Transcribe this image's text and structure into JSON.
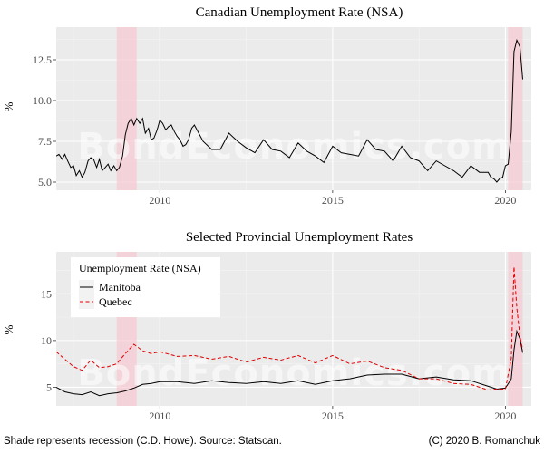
{
  "chart_data": [
    {
      "type": "line",
      "title": "Canadian Unemployment Rate (NSA)",
      "xlabel": "",
      "ylabel": "%",
      "xlim": [
        2007.0,
        2020.75
      ],
      "ylim": [
        4.5,
        14.5
      ],
      "x_ticks": [
        2010,
        2015,
        2020
      ],
      "x_tick_labels": [
        "2010",
        "2015",
        "2020"
      ],
      "y_ticks": [
        5.0,
        7.5,
        10.0,
        12.5
      ],
      "y_tick_labels": [
        "5.0",
        "7.5",
        "10.0",
        "12.5"
      ],
      "recessions": [
        [
          2008.75,
          2009.33
        ],
        [
          2020.08,
          2020.5
        ]
      ],
      "grid": true,
      "series": [
        {
          "color": "#000000",
          "x": [
            2007.0,
            2007.08,
            2007.17,
            2007.25,
            2007.33,
            2007.42,
            2007.5,
            2007.58,
            2007.67,
            2007.75,
            2007.83,
            2007.92,
            2008.0,
            2008.08,
            2008.17,
            2008.25,
            2008.33,
            2008.42,
            2008.5,
            2008.58,
            2008.67,
            2008.75,
            2008.83,
            2008.92,
            2009.0,
            2009.08,
            2009.17,
            2009.25,
            2009.33,
            2009.42,
            2009.5,
            2009.58,
            2009.67,
            2009.75,
            2009.83,
            2009.92,
            2010.0,
            2010.08,
            2010.17,
            2010.25,
            2010.33,
            2010.42,
            2010.5,
            2010.58,
            2010.67,
            2010.75,
            2010.83,
            2010.92,
            2011.0,
            2011.25,
            2011.5,
            2011.75,
            2012.0,
            2012.25,
            2012.5,
            2012.75,
            2013.0,
            2013.25,
            2013.5,
            2013.75,
            2014.0,
            2014.25,
            2014.5,
            2014.75,
            2015.0,
            2015.25,
            2015.5,
            2015.75,
            2016.0,
            2016.25,
            2016.5,
            2016.75,
            2017.0,
            2017.25,
            2017.5,
            2017.75,
            2018.0,
            2018.25,
            2018.5,
            2018.75,
            2019.0,
            2019.25,
            2019.5,
            2019.58,
            2019.67,
            2019.75,
            2019.83,
            2019.92,
            2020.0,
            2020.08,
            2020.17,
            2020.25,
            2020.33,
            2020.42,
            2020.5
          ],
          "values": [
            6.6,
            6.7,
            6.4,
            6.7,
            6.3,
            5.9,
            6.0,
            5.4,
            5.7,
            5.3,
            5.6,
            6.3,
            6.5,
            6.4,
            5.9,
            6.4,
            5.7,
            5.9,
            6.1,
            5.7,
            6.0,
            5.7,
            5.9,
            6.6,
            7.9,
            8.6,
            8.9,
            8.5,
            8.9,
            8.6,
            8.9,
            8.0,
            8.3,
            7.6,
            7.7,
            8.2,
            8.8,
            8.6,
            8.2,
            8.4,
            8.5,
            8.1,
            7.8,
            7.6,
            7.2,
            7.3,
            7.6,
            8.3,
            8.5,
            7.5,
            7.0,
            7.0,
            8.0,
            7.5,
            7.1,
            6.8,
            7.6,
            7.0,
            6.9,
            6.5,
            7.4,
            6.9,
            6.6,
            6.2,
            7.2,
            6.8,
            6.7,
            6.6,
            7.6,
            7.0,
            6.9,
            6.3,
            7.2,
            6.5,
            6.3,
            5.7,
            6.3,
            6.0,
            5.7,
            5.3,
            6.0,
            5.6,
            5.6,
            5.3,
            5.2,
            5.0,
            5.2,
            5.3,
            6.0,
            6.1,
            8.1,
            13.0,
            13.7,
            13.3,
            11.3
          ]
        }
      ]
    },
    {
      "type": "line",
      "title": "Selected Provincial Unemployment Rates",
      "xlabel": "",
      "ylabel": "%",
      "xlim": [
        2007.0,
        2020.75
      ],
      "ylim": [
        3.0,
        19.5
      ],
      "x_ticks": [
        2010,
        2015,
        2020
      ],
      "x_tick_labels": [
        "2010",
        "2015",
        "2020"
      ],
      "y_ticks": [
        5,
        10,
        15
      ],
      "y_tick_labels": [
        "5",
        "10",
        "15"
      ],
      "recessions": [
        [
          2008.75,
          2009.33
        ],
        [
          2020.08,
          2020.5
        ]
      ],
      "grid": true,
      "legend": {
        "title": "Unemployment Rate (NSA)",
        "position": "top-left"
      },
      "series": [
        {
          "name": "Manitoba",
          "color": "#000000",
          "dash": "solid",
          "x": [
            2007.0,
            2007.25,
            2007.5,
            2007.75,
            2008.0,
            2008.25,
            2008.5,
            2008.75,
            2009.0,
            2009.25,
            2009.5,
            2009.75,
            2010.0,
            2010.5,
            2011.0,
            2011.5,
            2012.0,
            2012.5,
            2013.0,
            2013.5,
            2014.0,
            2014.5,
            2015.0,
            2015.5,
            2016.0,
            2016.5,
            2017.0,
            2017.5,
            2018.0,
            2018.5,
            2019.0,
            2019.5,
            2019.75,
            2020.0,
            2020.17,
            2020.25,
            2020.33,
            2020.42,
            2020.5
          ],
          "values": [
            5.0,
            4.5,
            4.3,
            4.2,
            4.5,
            4.1,
            4.3,
            4.4,
            4.6,
            4.9,
            5.3,
            5.4,
            5.6,
            5.6,
            5.4,
            5.7,
            5.5,
            5.4,
            5.6,
            5.4,
            5.7,
            5.3,
            5.7,
            5.9,
            6.3,
            6.4,
            6.4,
            5.9,
            6.1,
            5.8,
            5.7,
            5.1,
            4.8,
            4.9,
            5.9,
            9.0,
            11.0,
            10.2,
            8.7
          ]
        },
        {
          "name": "Quebec",
          "color": "#e00000",
          "dash": "dashed",
          "x": [
            2007.0,
            2007.25,
            2007.5,
            2007.75,
            2008.0,
            2008.25,
            2008.5,
            2008.75,
            2009.0,
            2009.25,
            2009.5,
            2009.75,
            2010.0,
            2010.5,
            2011.0,
            2011.5,
            2012.0,
            2012.5,
            2013.0,
            2013.5,
            2014.0,
            2014.5,
            2015.0,
            2015.5,
            2016.0,
            2016.5,
            2017.0,
            2017.5,
            2018.0,
            2018.5,
            2019.0,
            2019.5,
            2019.75,
            2020.0,
            2020.17,
            2020.25,
            2020.33,
            2020.42,
            2020.5
          ],
          "values": [
            8.8,
            8.0,
            7.2,
            6.8,
            7.9,
            7.1,
            7.2,
            7.5,
            8.6,
            9.6,
            8.9,
            8.6,
            8.8,
            8.3,
            8.4,
            8.0,
            8.3,
            7.7,
            8.2,
            7.9,
            8.4,
            7.6,
            8.4,
            7.5,
            7.8,
            7.1,
            6.8,
            5.9,
            5.9,
            5.4,
            5.3,
            4.7,
            4.8,
            4.8,
            8.1,
            17.9,
            13.5,
            10.5,
            9.0
          ]
        }
      ]
    }
  ],
  "watermark": "BondEconomics.com",
  "footer": {
    "left": "Shade represents recession (C.D. Howe). Source: Statscan.",
    "right": "(C) 2020 B. Romanchuk"
  }
}
